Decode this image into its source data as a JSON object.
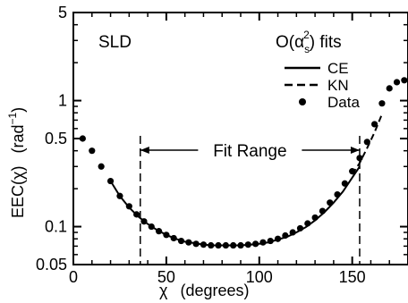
{
  "chart_data": {
    "type": "scatter",
    "title": "",
    "xlabel_symbol": "χ",
    "xlabel_unit": "(degrees)",
    "ylabel_main": "EEC(χ)",
    "ylabel_unit_base": "(rad",
    "ylabel_unit_exp": "−1",
    "ylabel_unit_close": ")",
    "xlim": [
      0,
      180
    ],
    "ylim": [
      0.05,
      5
    ],
    "yscale": "log",
    "grid": false,
    "x_ticks": [
      {
        "value": 0,
        "label": "0"
      },
      {
        "value": 50,
        "label": "50"
      },
      {
        "value": 100,
        "label": "100"
      },
      {
        "value": 150,
        "label": "150"
      }
    ],
    "y_ticks": [
      {
        "value": 0.05,
        "label": "0.05"
      },
      {
        "value": 0.1,
        "label": "0.1"
      },
      {
        "value": 0.5,
        "label": "0.5"
      },
      {
        "value": 1,
        "label": "1"
      },
      {
        "value": 5,
        "label": "5"
      }
    ],
    "annotation": "SLD",
    "legend": {
      "title_prefix": "O(α",
      "title_sub": "s",
      "title_sup": "2",
      "title_suffix": ") fits",
      "placement": "top-right",
      "entries": [
        {
          "label": "CE",
          "style": "solid"
        },
        {
          "label": "KN",
          "style": "dashed"
        },
        {
          "label": "Data",
          "style": "dot"
        }
      ]
    },
    "fit_range": {
      "label": "Fit Range",
      "x_min": 36,
      "x_max": 154
    },
    "series": [
      {
        "name": "Data",
        "style": "dot",
        "x": [
          5,
          10,
          15,
          20,
          25,
          30,
          34,
          38,
          42,
          46,
          50,
          54,
          58,
          62,
          66,
          70,
          74,
          78,
          82,
          86,
          90,
          94,
          98,
          102,
          106,
          110,
          114,
          118,
          122,
          126,
          130,
          134,
          138,
          142,
          146,
          150,
          154,
          158,
          162,
          166,
          170,
          174,
          178
        ],
        "y": [
          0.5,
          0.4,
          0.3,
          0.23,
          0.175,
          0.145,
          0.125,
          0.11,
          0.1,
          0.092,
          0.086,
          0.081,
          0.077,
          0.075,
          0.073,
          0.072,
          0.071,
          0.071,
          0.071,
          0.071,
          0.071,
          0.072,
          0.073,
          0.075,
          0.077,
          0.08,
          0.085,
          0.09,
          0.097,
          0.106,
          0.118,
          0.133,
          0.155,
          0.18,
          0.22,
          0.275,
          0.35,
          0.47,
          0.65,
          0.95,
          1.25,
          1.4,
          1.45
        ]
      },
      {
        "name": "CE",
        "style": "solid",
        "x": [
          20,
          25,
          30,
          35,
          40,
          45,
          50,
          55,
          60,
          65,
          70,
          75,
          80,
          85,
          90,
          95,
          100,
          105,
          110,
          115,
          120,
          125,
          130,
          135,
          140,
          145,
          150,
          154
        ],
        "y": [
          0.23,
          0.175,
          0.142,
          0.12,
          0.105,
          0.094,
          0.086,
          0.08,
          0.076,
          0.074,
          0.072,
          0.071,
          0.071,
          0.071,
          0.071,
          0.072,
          0.073,
          0.075,
          0.079,
          0.083,
          0.09,
          0.099,
          0.112,
          0.13,
          0.155,
          0.19,
          0.245,
          0.3
        ]
      },
      {
        "name": "KN",
        "style": "dashed",
        "x": [
          150,
          154,
          158,
          162,
          166
        ],
        "y": [
          0.26,
          0.32,
          0.42,
          0.56,
          0.78
        ]
      }
    ]
  }
}
